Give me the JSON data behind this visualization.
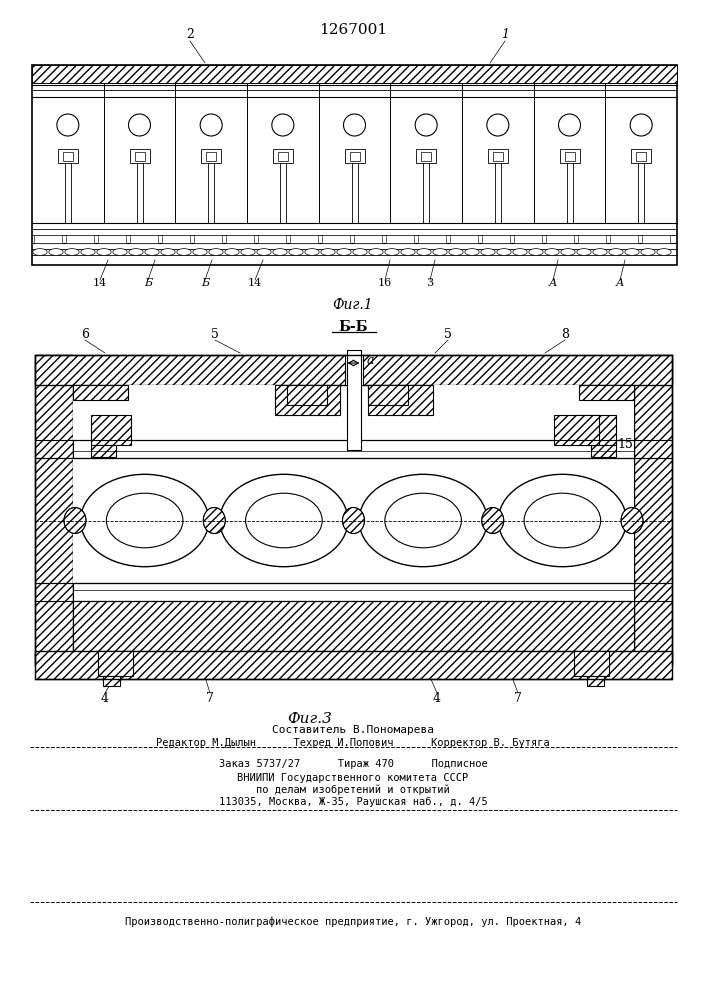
{
  "patent_number": "1267001",
  "fig1_label": "Фиг.1",
  "fig3_label": "Фиг.3",
  "fig_bb_label": "Б-Б",
  "bg_color": "#ffffff",
  "line_color": "#000000",
  "footer_lines": [
    "Составитель В.Пономарева",
    "Редактор М.Дылын      Техред И.Попович      Корректор В. Бутяга",
    "Заказ 5737/27      Тираж 470      Подписное",
    "ВНИИПИ Государственного комитета СССР",
    "по делам изобретений и открытий",
    "113035, Москва, Ж-35, Раушская наб., д. 4/5",
    "Производственно-полиграфическое предприятие, г. Ужгород, ул. Проектная, 4"
  ]
}
